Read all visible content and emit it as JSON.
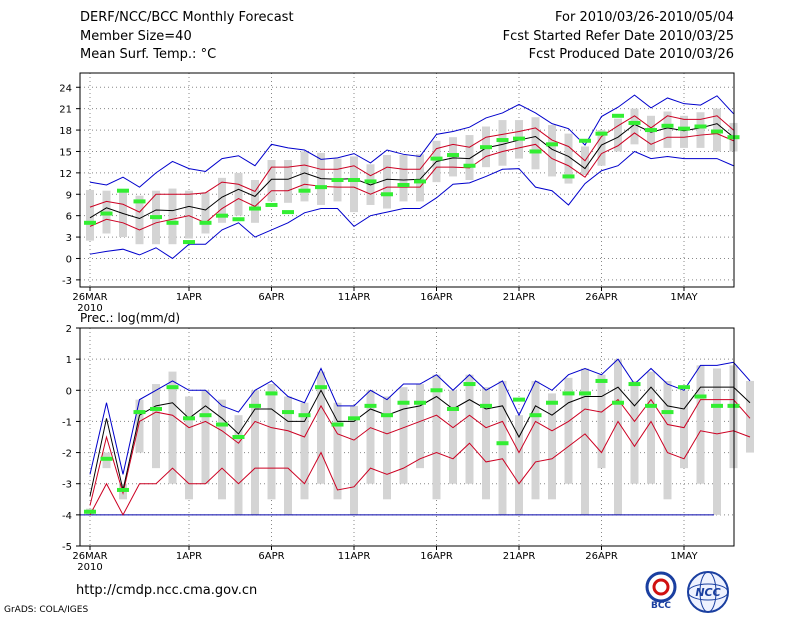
{
  "header": {
    "left": [
      "DERF/NCC/BCC Monthly Forecast",
      "Member Size=40",
      "Mean Surf. Temp.: °C"
    ],
    "right": [
      "For 2010/03/26-2010/05/04",
      "Fcst Started Refer Date 2010/03/25",
      "Fcst Produced Date 2010/03/26"
    ]
  },
  "footer": {
    "url": "http://cmdp.ncc.cma.gov.cn",
    "credit": "GrADS: COLA/IGES"
  },
  "logos": {
    "bcc": "BCC",
    "ncc": "NCC"
  },
  "colors": {
    "mean": "#000000",
    "spread": "#cc0022",
    "extreme": "#0000cc",
    "obs": "#33ee33",
    "bar": "#d4d4d4",
    "grid": "#888888",
    "floor": "#0000aa"
  },
  "x_ticks": [
    {
      "day": 0,
      "label": "26MAR",
      "sub": "2010"
    },
    {
      "day": 6,
      "label": "1APR"
    },
    {
      "day": 11,
      "label": "6APR"
    },
    {
      "day": 16,
      "label": "11APR"
    },
    {
      "day": 21,
      "label": "16APR"
    },
    {
      "day": 26,
      "label": "21APR"
    },
    {
      "day": 31,
      "label": "26APR"
    },
    {
      "day": 36,
      "label": "1MAY"
    }
  ],
  "chart_data": [
    {
      "type": "line",
      "title": "Mean Surf. Temp.: °C",
      "x_range": [
        0,
        40
      ],
      "ylim": [
        -4,
        26
      ],
      "yticks": [
        -3,
        0,
        3,
        6,
        9,
        12,
        15,
        18,
        21,
        24
      ],
      "series": [
        {
          "name": "mean",
          "values": [
            5.7,
            7.1,
            6.3,
            5.6,
            6.8,
            6.7,
            7.3,
            6.8,
            8.6,
            9.7,
            8.7,
            11.1,
            11.1,
            12.0,
            11.2,
            11.1,
            11.2,
            10.3,
            11.1,
            11.0,
            11.1,
            13.6,
            14.1,
            14.0,
            15.5,
            16.0,
            16.6,
            17.1,
            15.3,
            14.3,
            12.6,
            15.9,
            17.0,
            18.8,
            17.7,
            18.3,
            17.9,
            18.3,
            18.9,
            17.0
          ]
        },
        {
          "name": "upper_spread",
          "values": [
            7.2,
            8.0,
            7.6,
            6.5,
            9.0,
            9.0,
            9.0,
            9.2,
            10.7,
            10.4,
            9.4,
            12.8,
            12.8,
            13.1,
            12.5,
            12.5,
            13.0,
            11.6,
            12.8,
            12.5,
            12.5,
            15.4,
            16.0,
            15.6,
            17.0,
            17.4,
            17.8,
            18.3,
            16.6,
            15.7,
            13.7,
            17.1,
            18.6,
            20.0,
            18.3,
            20.0,
            19.5,
            19.5,
            20.0,
            18.0
          ]
        },
        {
          "name": "lower_spread",
          "values": [
            4.5,
            5.5,
            5.0,
            4.0,
            5.0,
            5.5,
            6.0,
            5.0,
            7.0,
            8.4,
            7.3,
            9.5,
            9.5,
            10.4,
            10.1,
            10.0,
            10.0,
            9.0,
            10.0,
            10.0,
            10.0,
            12.8,
            12.8,
            12.7,
            14.3,
            15.0,
            15.5,
            16.0,
            14.0,
            13.0,
            11.4,
            14.7,
            15.8,
            17.6,
            16.0,
            17.0,
            17.0,
            17.3,
            17.5,
            16.5
          ]
        },
        {
          "name": "max",
          "values": [
            10.7,
            10.3,
            11.4,
            10.0,
            12.0,
            13.6,
            12.6,
            12.2,
            14.0,
            14.4,
            13.0,
            16.0,
            15.5,
            15.2,
            13.9,
            14.1,
            14.7,
            13.4,
            15.2,
            14.6,
            14.3,
            17.4,
            17.8,
            18.4,
            19.7,
            20.4,
            21.6,
            20.4,
            18.9,
            18.2,
            15.9,
            19.9,
            21.2,
            22.9,
            21.1,
            22.5,
            21.7,
            21.5,
            22.8,
            20.3
          ]
        },
        {
          "name": "min",
          "values": [
            0.6,
            1.0,
            1.3,
            0.5,
            1.5,
            0.0,
            2.0,
            2.0,
            4.0,
            5.0,
            3.0,
            4.0,
            5.0,
            6.4,
            7.0,
            7.0,
            4.5,
            6.0,
            6.5,
            7.0,
            7.0,
            8.5,
            10.4,
            10.6,
            11.5,
            12.5,
            12.6,
            10.0,
            9.5,
            7.5,
            10.5,
            12.3,
            13.0,
            15.0,
            14.0,
            14.3,
            14.0,
            14.0,
            14.0,
            13.0
          ]
        },
        {
          "name": "observed",
          "values": [
            5.0,
            6.3,
            9.5,
            8.0,
            5.8,
            5.0,
            2.3,
            5.0,
            6.0,
            5.5,
            7.0,
            7.5,
            6.5,
            9.5,
            10.0,
            11.0,
            11.0,
            10.8,
            9.0,
            10.3,
            10.8,
            14.0,
            14.5,
            13.0,
            15.6,
            16.6,
            16.8,
            15.0,
            16.0,
            11.5,
            16.5,
            17.5,
            20.0,
            19.0,
            18.0,
            18.6,
            18.2,
            18.5,
            17.8,
            17.0
          ]
        },
        {
          "name": "bar_high",
          "values": [
            9.6,
            9.5,
            9.7,
            8.8,
            9.5,
            9.8,
            9.5,
            9.3,
            11.3,
            12.0,
            11.0,
            13.8,
            13.8,
            15.0,
            14.8,
            14.0,
            14.3,
            13.2,
            14.5,
            14.5,
            14.6,
            16.5,
            17.0,
            17.3,
            18.5,
            19.4,
            19.4,
            19.8,
            18.7,
            17.5,
            15.7,
            18.0,
            19.6,
            21.0,
            20.0,
            20.6,
            20.0,
            20.5,
            21.0,
            19.0
          ]
        },
        {
          "name": "bar_low",
          "values": [
            2.5,
            3.5,
            3.0,
            2.0,
            2.0,
            2.0,
            2.8,
            3.5,
            5.0,
            6.0,
            5.0,
            8.0,
            7.8,
            8.0,
            7.5,
            8.0,
            6.5,
            7.5,
            7.0,
            8.0,
            8.0,
            10.7,
            11.5,
            11.0,
            12.8,
            13.0,
            14.0,
            12.5,
            11.5,
            10.5,
            11.7,
            13.0,
            15.0,
            16.0,
            15.0,
            15.5,
            15.5,
            15.5,
            15.0,
            15.0
          ]
        }
      ]
    },
    {
      "type": "line",
      "title": "Prec.: log(mm/d)",
      "x_range": [
        0,
        40
      ],
      "ylim": [
        -5,
        2
      ],
      "yticks": [
        -5,
        -4,
        -3,
        -2,
        -1,
        0,
        1,
        2
      ],
      "series": [
        {
          "name": "mean",
          "values": [
            -3.4,
            -0.9,
            -3.2,
            -0.8,
            -0.5,
            -0.4,
            -0.9,
            -0.5,
            -0.9,
            -1.4,
            -0.6,
            -0.6,
            -1.0,
            -1.0,
            0.0,
            -1.0,
            -1.0,
            -0.6,
            -0.8,
            -0.6,
            -0.5,
            -0.2,
            -0.6,
            -0.3,
            -0.6,
            -0.5,
            -1.5,
            -0.5,
            -0.8,
            -0.4,
            -0.2,
            -0.2,
            0.1,
            -0.5,
            0.1,
            -0.5,
            -0.6,
            0.1,
            0.1,
            0.1,
            -0.4
          ]
        },
        {
          "name": "upper_spread",
          "values": [
            -3.7,
            -1.5,
            -3.3,
            -1.0,
            -0.7,
            -0.8,
            -1.2,
            -1.0,
            -1.3,
            -1.7,
            -1.0,
            -1.2,
            -1.3,
            -1.5,
            -0.5,
            -1.4,
            -1.6,
            -1.2,
            -1.4,
            -1.2,
            -1.0,
            -0.8,
            -1.2,
            -0.8,
            -1.2,
            -1.0,
            -2.0,
            -1.0,
            -1.3,
            -1.0,
            -0.6,
            -0.7,
            -0.3,
            -1.0,
            -0.3,
            -1.1,
            -1.2,
            -0.3,
            -0.3,
            -0.3,
            -0.9
          ]
        },
        {
          "name": "lower_spread",
          "values": [
            -4.0,
            -3.0,
            -4.0,
            -3.0,
            -3.0,
            -2.5,
            -3.0,
            -3.0,
            -2.5,
            -3.0,
            -2.5,
            -2.5,
            -2.5,
            -3.0,
            -2.0,
            -3.2,
            -3.1,
            -2.5,
            -2.7,
            -2.5,
            -2.2,
            -2.0,
            -2.2,
            -1.7,
            -2.3,
            -2.2,
            -3.0,
            -2.3,
            -2.2,
            -1.8,
            -1.4,
            -2.0,
            -1.0,
            -1.8,
            -1.0,
            -2.0,
            -2.2,
            -1.3,
            -1.4,
            -1.3,
            -1.5
          ]
        },
        {
          "name": "max",
          "values": [
            -2.7,
            -0.4,
            -2.7,
            -0.3,
            0.0,
            0.3,
            0.0,
            0.0,
            -0.5,
            -0.7,
            0.0,
            0.3,
            -0.2,
            -0.4,
            0.7,
            -0.5,
            -0.5,
            0.0,
            -0.3,
            0.2,
            0.2,
            0.5,
            0.0,
            0.5,
            0.0,
            0.3,
            -0.8,
            0.3,
            0.0,
            0.5,
            0.7,
            0.5,
            1.0,
            0.2,
            0.7,
            0.2,
            0.0,
            0.8,
            0.8,
            0.9,
            0.3
          ]
        },
        {
          "name": "observed",
          "values": [
            -3.9,
            -2.2,
            -3.2,
            -0.7,
            -0.6,
            0.1,
            -0.9,
            -0.8,
            -1.1,
            -1.5,
            -0.5,
            -0.1,
            -0.7,
            -0.8,
            0.1,
            -1.1,
            -0.9,
            -0.5,
            -0.8,
            -0.4,
            -0.4,
            0.0,
            -0.6,
            0.2,
            -0.5,
            -1.7,
            -0.3,
            -0.8,
            -0.4,
            -0.1,
            -0.1,
            0.3,
            -0.4,
            0.2,
            -0.5,
            -0.7,
            0.1,
            -0.2,
            -0.5,
            -0.5
          ]
        },
        {
          "name": "bar_high",
          "values": [
            -3.8,
            -2.0,
            -3.0,
            -0.3,
            0.2,
            0.6,
            -0.2,
            0.0,
            -0.3,
            -0.8,
            0.0,
            0.2,
            -0.2,
            -0.4,
            0.6,
            -0.4,
            -0.5,
            0.0,
            -0.2,
            0.1,
            0.2,
            0.5,
            0.0,
            0.5,
            0.1,
            0.3,
            -0.8,
            0.3,
            -0.1,
            0.4,
            0.7,
            0.5,
            1.0,
            0.3,
            0.6,
            0.3,
            0.0,
            0.8,
            0.7,
            0.8,
            0.3
          ]
        },
        {
          "name": "bar_low",
          "values": [
            -4.0,
            -2.5,
            -3.5,
            -2.0,
            -2.5,
            -3.0,
            -3.5,
            -3.0,
            -3.5,
            -4.0,
            -4.0,
            -3.5,
            -4.0,
            -3.5,
            -3.0,
            -3.5,
            -4.0,
            -3.0,
            -3.5,
            -3.0,
            -2.5,
            -3.5,
            -3.0,
            -3.0,
            -3.5,
            -4.0,
            -4.0,
            -3.5,
            -3.5,
            -3.0,
            -4.0,
            -2.5,
            -4.0,
            -3.0,
            -3.0,
            -3.5,
            -2.5,
            -3.0,
            -4.0,
            -2.5,
            -2.0
          ]
        }
      ],
      "floor_line": -4
    }
  ]
}
